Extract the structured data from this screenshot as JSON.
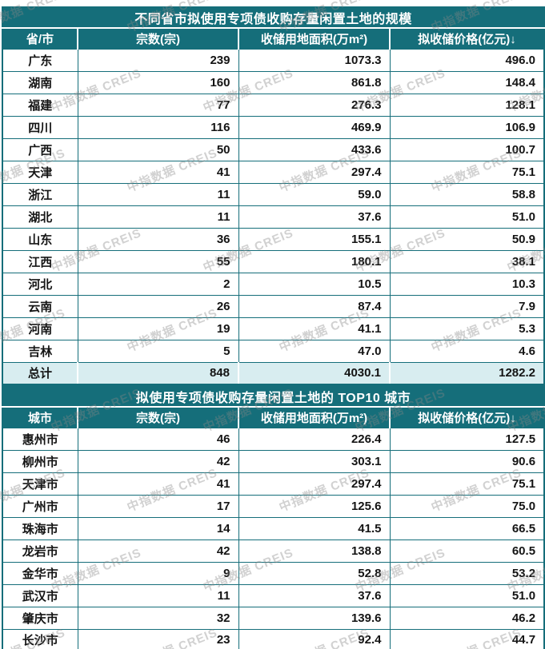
{
  "watermark": {
    "text": "中指数据 CREIS"
  },
  "colors": {
    "header_teal": "#156e7a",
    "total_row_bg": "#d8edf0",
    "row_bg": "#ffffff",
    "header_text": "#ffffff",
    "body_text": "#141414",
    "watermark_gray": "#878787"
  },
  "chart_data": [
    {
      "type": "table",
      "title": "不同省市拟使用专项债收购存量闲置土地的规模",
      "columns": [
        "省/市",
        "宗数(宗)",
        "收储用地面积(万m²)",
        "拟收储价格(亿元)↓"
      ],
      "sort_indicator": {
        "column": "拟收储价格(亿元)",
        "direction": "descending",
        "glyph": "↓"
      },
      "rows": [
        [
          "广东",
          "239",
          "1073.3",
          "496.0"
        ],
        [
          "湖南",
          "160",
          "861.8",
          "148.4"
        ],
        [
          "福建",
          "77",
          "276.3",
          "128.1"
        ],
        [
          "四川",
          "116",
          "469.9",
          "106.9"
        ],
        [
          "广西",
          "50",
          "433.6",
          "100.7"
        ],
        [
          "天津",
          "41",
          "297.4",
          "75.1"
        ],
        [
          "浙江",
          "11",
          "59.0",
          "58.8"
        ],
        [
          "湖北",
          "11",
          "37.6",
          "51.0"
        ],
        [
          "山东",
          "36",
          "155.1",
          "50.9"
        ],
        [
          "江西",
          "55",
          "180.1",
          "38.1"
        ],
        [
          "河北",
          "2",
          "10.5",
          "10.3"
        ],
        [
          "云南",
          "26",
          "87.4",
          "7.9"
        ],
        [
          "河南",
          "19",
          "41.1",
          "5.3"
        ],
        [
          "吉林",
          "5",
          "47.0",
          "4.6"
        ]
      ],
      "total_row": [
        "总计",
        "848",
        "4030.1",
        "1282.2"
      ]
    },
    {
      "type": "table",
      "title": "拟使用专项债收购存量闲置土地的 TOP10 城市",
      "columns": [
        "城市",
        "宗数(宗)",
        "收储用地面积(万m²)",
        "拟收储价格(亿元)↓"
      ],
      "sort_indicator": {
        "column": "拟收储价格(亿元)",
        "direction": "descending",
        "glyph": "↓"
      },
      "rows": [
        [
          "惠州市",
          "46",
          "226.4",
          "127.5"
        ],
        [
          "柳州市",
          "42",
          "303.1",
          "90.6"
        ],
        [
          "天津市",
          "41",
          "297.4",
          "75.1"
        ],
        [
          "广州市",
          "17",
          "125.6",
          "75.0"
        ],
        [
          "珠海市",
          "14",
          "41.5",
          "66.5"
        ],
        [
          "龙岩市",
          "42",
          "138.8",
          "60.5"
        ],
        [
          "金华市",
          "9",
          "52.8",
          "53.2"
        ],
        [
          "武汉市",
          "11",
          "37.6",
          "51.0"
        ],
        [
          "肇庆市",
          "32",
          "139.6",
          "46.2"
        ],
        [
          "长沙市",
          "23",
          "92.4",
          "44.7"
        ]
      ]
    }
  ]
}
